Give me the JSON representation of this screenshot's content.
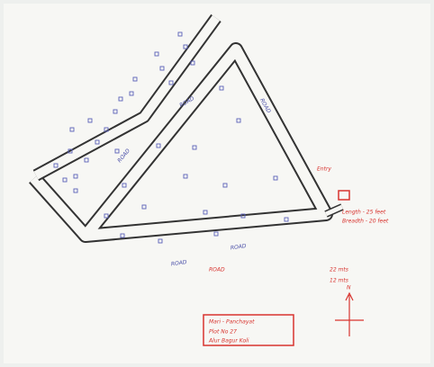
{
  "road_labels": [
    "ROAD",
    "ROAD",
    "ROAD",
    "ROAD",
    "ROAD"
  ],
  "annotations": [
    "ROAD",
    "Entry",
    "Length - 25 feet",
    "Breadth - 20 feet",
    "22 mts",
    "12 mts"
  ],
  "title_box": {
    "lines": [
      "Mari - Panchayat",
      "Plot No 27",
      "Alur Bagur Koli"
    ]
  },
  "compass": {
    "label": "N"
  }
}
